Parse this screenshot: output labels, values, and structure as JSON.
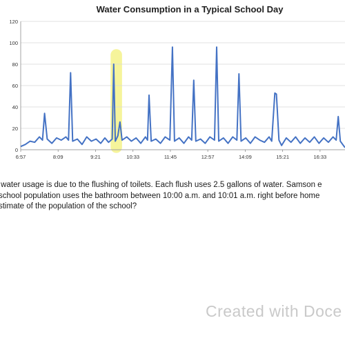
{
  "chart_data": {
    "type": "line",
    "title": "Water Consumption in a Typical School Day",
    "xlabel": "",
    "ylabel": "",
    "ylim": [
      0,
      120
    ],
    "yticks": [
      0,
      20,
      40,
      60,
      80,
      100,
      120
    ],
    "xlim": [
      "6:57",
      "17:21"
    ],
    "xticks": [
      "6:57",
      "8:09",
      "9:21",
      "10:33",
      "11:45",
      "12:57",
      "14:09",
      "15:21",
      "16:33"
    ],
    "grid": "horizontal",
    "line_color": "#4472c4",
    "highlight": {
      "from": "9:50",
      "to": "10:12",
      "color": "#f3f07a"
    },
    "series": [
      {
        "name": "",
        "points": [
          [
            "6:57",
            3
          ],
          [
            "7:06",
            5
          ],
          [
            "7:15",
            8
          ],
          [
            "7:24",
            7
          ],
          [
            "7:33",
            12
          ],
          [
            "7:39",
            9
          ],
          [
            "7:43",
            34
          ],
          [
            "7:48",
            10
          ],
          [
            "7:57",
            6
          ],
          [
            "8:06",
            11
          ],
          [
            "8:15",
            9
          ],
          [
            "8:24",
            12
          ],
          [
            "8:29",
            9
          ],
          [
            "8:33",
            72
          ],
          [
            "8:37",
            8
          ],
          [
            "8:46",
            10
          ],
          [
            "8:55",
            5
          ],
          [
            "9:04",
            12
          ],
          [
            "9:13",
            8
          ],
          [
            "9:22",
            10
          ],
          [
            "9:31",
            6
          ],
          [
            "9:39",
            11
          ],
          [
            "9:46",
            7
          ],
          [
            "9:53",
            10
          ],
          [
            "9:56",
            80
          ],
          [
            "9:59",
            8
          ],
          [
            "10:04",
            13
          ],
          [
            "10:08",
            26
          ],
          [
            "10:12",
            9
          ],
          [
            "10:21",
            12
          ],
          [
            "10:30",
            8
          ],
          [
            "10:39",
            11
          ],
          [
            "10:48",
            6
          ],
          [
            "10:57",
            12
          ],
          [
            "11:01",
            9
          ],
          [
            "11:04",
            51
          ],
          [
            "11:08",
            8
          ],
          [
            "11:17",
            10
          ],
          [
            "11:26",
            6
          ],
          [
            "11:35",
            12
          ],
          [
            "11:44",
            9
          ],
          [
            "11:49",
            96
          ],
          [
            "11:53",
            8
          ],
          [
            "12:02",
            11
          ],
          [
            "12:11",
            6
          ],
          [
            "12:20",
            12
          ],
          [
            "12:26",
            9
          ],
          [
            "12:30",
            65
          ],
          [
            "12:34",
            8
          ],
          [
            "12:43",
            10
          ],
          [
            "12:52",
            6
          ],
          [
            "13:01",
            12
          ],
          [
            "13:10",
            9
          ],
          [
            "13:14",
            96
          ],
          [
            "13:18",
            8
          ],
          [
            "13:27",
            11
          ],
          [
            "13:36",
            6
          ],
          [
            "13:45",
            12
          ],
          [
            "13:53",
            9
          ],
          [
            "13:57",
            71
          ],
          [
            "14:01",
            8
          ],
          [
            "14:10",
            11
          ],
          [
            "14:19",
            6
          ],
          [
            "14:28",
            12
          ],
          [
            "14:37",
            9
          ],
          [
            "14:46",
            7
          ],
          [
            "14:55",
            12
          ],
          [
            "15:00",
            8
          ],
          [
            "15:06",
            53
          ],
          [
            "15:09",
            52
          ],
          [
            "15:14",
            9
          ],
          [
            "15:19",
            4
          ],
          [
            "15:28",
            11
          ],
          [
            "15:37",
            7
          ],
          [
            "15:46",
            12
          ],
          [
            "15:55",
            6
          ],
          [
            "16:04",
            11
          ],
          [
            "16:13",
            7
          ],
          [
            "16:22",
            12
          ],
          [
            "16:31",
            6
          ],
          [
            "16:40",
            11
          ],
          [
            "16:49",
            7
          ],
          [
            "16:58",
            12
          ],
          [
            "17:04",
            9
          ],
          [
            "17:08",
            31
          ],
          [
            "17:12",
            8
          ],
          [
            "17:21",
            2
          ]
        ]
      }
    ]
  },
  "question": {
    "line1": "t of water usage is due to the flushing of toilets.  Each flush uses 2.5 gallons of water.  Samson e",
    "line2": "he school population uses the bathroom between 10:00 a.m. and 10:01 a.m. right before home",
    "line3": "d estimate of the population of the school?"
  },
  "watermark": "Created with Doce"
}
